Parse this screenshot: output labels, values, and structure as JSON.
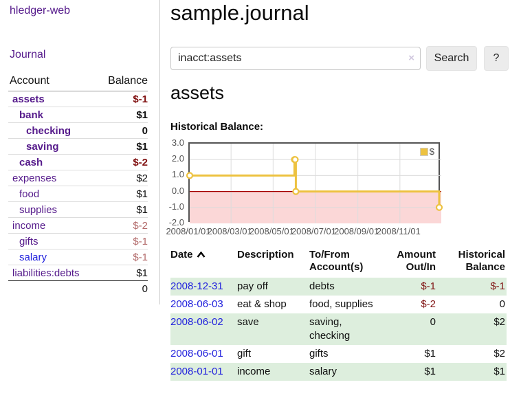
{
  "app": {
    "title": "hledger-web"
  },
  "sidebar": {
    "journal_link": "Journal",
    "accounts_header": {
      "account": "Account",
      "balance": "Balance"
    },
    "accounts": [
      {
        "name": "assets",
        "depth": 1,
        "bold": true,
        "balance": "$-1"
      },
      {
        "name": "bank",
        "depth": 2,
        "bold": true,
        "balance": "$1"
      },
      {
        "name": "checking",
        "depth": 3,
        "bold": true,
        "balance": "0"
      },
      {
        "name": "saving",
        "depth": 3,
        "bold": true,
        "balance": "$1"
      },
      {
        "name": "cash",
        "depth": 2,
        "bold": true,
        "balance": "$-2"
      },
      {
        "name": "expenses",
        "depth": 1,
        "bold": false,
        "balance": "$2"
      },
      {
        "name": "food",
        "depth": 2,
        "bold": false,
        "balance": "$1"
      },
      {
        "name": "supplies",
        "depth": 2,
        "bold": false,
        "balance": "$1"
      },
      {
        "name": "income",
        "depth": 1,
        "bold": false,
        "balance": "$-2"
      },
      {
        "name": "gifts",
        "depth": 2,
        "bold": false,
        "balance": "$-1"
      },
      {
        "name": "salary",
        "depth": 2,
        "bold": false,
        "balance": "$-1",
        "link_color": "blue"
      },
      {
        "name": "liabilities:debts",
        "depth": 1,
        "bold": false,
        "balance": "$1"
      }
    ],
    "total": "0"
  },
  "main": {
    "title": "sample.journal",
    "search": {
      "value": "inacct:assets",
      "clear_icon": "×",
      "search_label": "Search",
      "help_label": "?"
    },
    "account_heading": "assets",
    "chart_heading": "Historical Balance:"
  },
  "chart_data": {
    "type": "line",
    "title": "Historical Balance:",
    "step": true,
    "grid": true,
    "legend_position": "top-right",
    "ylim": [
      -2,
      3
    ],
    "x_range_days": [
      0,
      365
    ],
    "series": [
      {
        "name": "$",
        "color": "#edc240",
        "points": [
          {
            "date": "2008-01-01",
            "day": 0,
            "value": 1
          },
          {
            "date": "2008-06-01",
            "day": 152,
            "value": 2
          },
          {
            "date": "2008-06-02",
            "day": 153,
            "value": 2
          },
          {
            "date": "2008-06-03",
            "day": 154,
            "value": 0
          },
          {
            "date": "2008-12-31",
            "day": 365,
            "value": -1
          }
        ]
      }
    ],
    "x_ticks": [
      {
        "label": "2008/01/01",
        "day": 0
      },
      {
        "label": "2008/03/01",
        "day": 60
      },
      {
        "label": "2008/05/01",
        "day": 121
      },
      {
        "label": "2008/07/01",
        "day": 182
      },
      {
        "label": "2008/09/01",
        "day": 244
      },
      {
        "label": "2008/11/01",
        "day": 305
      }
    ],
    "y_ticks": [
      {
        "label": "3.0",
        "value": 3
      },
      {
        "label": "2.0",
        "value": 2
      },
      {
        "label": "1.0",
        "value": 1
      },
      {
        "label": "0.0",
        "value": 0
      },
      {
        "label": "-1.0",
        "value": -1
      },
      {
        "label": "-2.0",
        "value": -2
      }
    ],
    "colors": {
      "line": "#edc240",
      "marker_fill": "#ffffff",
      "negative_region": "#fbd7d7",
      "zero_line": "#a40000",
      "gridline": "#dcdcdc",
      "border": "#545454"
    }
  },
  "register_table": {
    "headers": {
      "date": "Date",
      "description": "Description",
      "accounts": "To/From\nAccount(s)",
      "amount": "Amount\nOut/In",
      "balance": "Historical\nBalance"
    },
    "rows": [
      {
        "date": "2008-12-31",
        "description": "pay off",
        "accounts": "debts",
        "amount": "$-1",
        "balance": "$-1"
      },
      {
        "date": "2008-06-03",
        "description": "eat & shop",
        "accounts": "food, supplies",
        "amount": "$-2",
        "balance": "0"
      },
      {
        "date": "2008-06-02",
        "description": "save",
        "accounts": "saving, checking",
        "amount": "0",
        "balance": "$2"
      },
      {
        "date": "2008-06-01",
        "description": "gift",
        "accounts": "gifts",
        "amount": "$1",
        "balance": "$2"
      },
      {
        "date": "2008-01-01",
        "description": "income",
        "accounts": "salary",
        "amount": "$1",
        "balance": "$1"
      }
    ]
  }
}
